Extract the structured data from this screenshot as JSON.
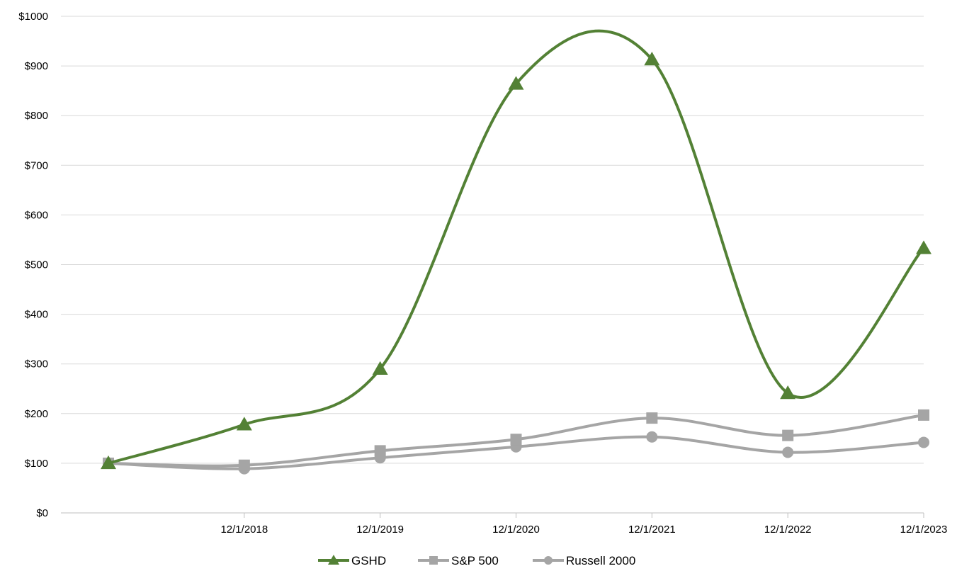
{
  "colors": {
    "GSHD": "#538135",
    "S&P 500": "#A5A5A5",
    "Russell 2000": "#A5A5A5",
    "grid": "#D9D9D9",
    "axis": "#BFBFBF"
  },
  "chart_data": {
    "type": "line",
    "smooth": true,
    "title": "",
    "xlabel": "",
    "ylabel": "",
    "categories": [
      "",
      "12/1/2018",
      "12/1/2019",
      "12/1/2020",
      "12/1/2021",
      "12/1/2022",
      "12/1/2023"
    ],
    "ylim": [
      0,
      1000
    ],
    "yticks": [
      0,
      100,
      200,
      300,
      400,
      500,
      600,
      700,
      800,
      900,
      1000
    ],
    "ytick_labels": [
      "$0",
      "$100",
      "$200",
      "$300",
      "$400",
      "$500",
      "$600",
      "$700",
      "$800",
      "$900",
      "$1000"
    ],
    "grid": true,
    "legend_position": "bottom",
    "series": [
      {
        "name": "GSHD",
        "marker": "triangle",
        "icon": "triangle-marker",
        "values": [
          100,
          178,
          290,
          864,
          913,
          241,
          533
        ]
      },
      {
        "name": "S&P 500",
        "marker": "square",
        "icon": "square-marker",
        "values": [
          100,
          96,
          125,
          148,
          191,
          156,
          197
        ]
      },
      {
        "name": "Russell 2000",
        "marker": "circle",
        "icon": "circle-marker",
        "values": [
          100,
          89,
          111,
          133,
          153,
          122,
          142
        ]
      }
    ]
  }
}
